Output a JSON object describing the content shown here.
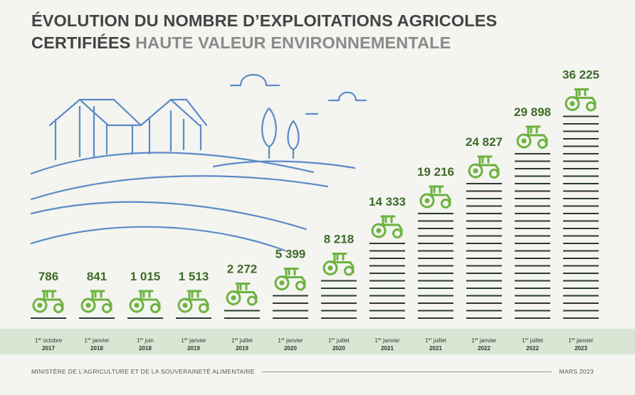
{
  "title": {
    "line1": "ÉVOLUTION DU NOMBRE D’EXPLOITATIONS AGRICOLES",
    "line2_dark": "CERTIFIÉES",
    "line2_light": "HAUTE VALEUR ENVIRONNEMENTALE"
  },
  "colors": {
    "accent_green": "#6cb33f",
    "value_green": "#3e6b2a",
    "bar_dark": "#2b3a30",
    "illustration_blue": "#5b8bc9",
    "band": "#d9e6d4"
  },
  "footer": {
    "source": "MINISTÈRE DE L’AGRICULTURE ET DE LA SOUVERAINETÉ ALIMENTAIRE",
    "date": "MARS 2023"
  },
  "chart_data": {
    "type": "bar",
    "title": "ÉVOLUTION DU NOMBRE D’EXPLOITATIONS AGRICOLES CERTIFIÉES HAUTE VALEUR ENVIRONNEMENTALE",
    "ylabel": "",
    "xlabel": "",
    "ylim": [
      0,
      36225
    ],
    "categories": [
      {
        "day": "1",
        "sup": "er",
        "month": "octobre",
        "year": "2017"
      },
      {
        "day": "1",
        "sup": "er",
        "month": "janvier",
        "year": "2018"
      },
      {
        "day": "1",
        "sup": "er",
        "month": "juin",
        "year": "2018"
      },
      {
        "day": "1",
        "sup": "er",
        "month": "janvier",
        "year": "2019"
      },
      {
        "day": "1",
        "sup": "er",
        "month": "juillet",
        "year": "2019"
      },
      {
        "day": "1",
        "sup": "er",
        "month": "janvier",
        "year": "2020"
      },
      {
        "day": "1",
        "sup": "er",
        "month": "juillet",
        "year": "2020"
      },
      {
        "day": "1",
        "sup": "er",
        "month": "janvier",
        "year": "2021"
      },
      {
        "day": "1",
        "sup": "er",
        "month": "juillet",
        "year": "2021"
      },
      {
        "day": "1",
        "sup": "er",
        "month": "janvier",
        "year": "2022"
      },
      {
        "day": "1",
        "sup": "er",
        "month": "juillet",
        "year": "2022"
      },
      {
        "day": "1",
        "sup": "er",
        "month": "janvier",
        "year": "2023"
      }
    ],
    "values": [
      786,
      841,
      1015,
      1513,
      2272,
      5399,
      8218,
      14333,
      19216,
      24827,
      29898,
      36225
    ],
    "value_labels": [
      "786",
      "841",
      "1 015",
      "1 513",
      "2 272",
      "5 399",
      "8 218",
      "14 333",
      "19 216",
      "24 827",
      "29 898",
      "36 225"
    ]
  }
}
